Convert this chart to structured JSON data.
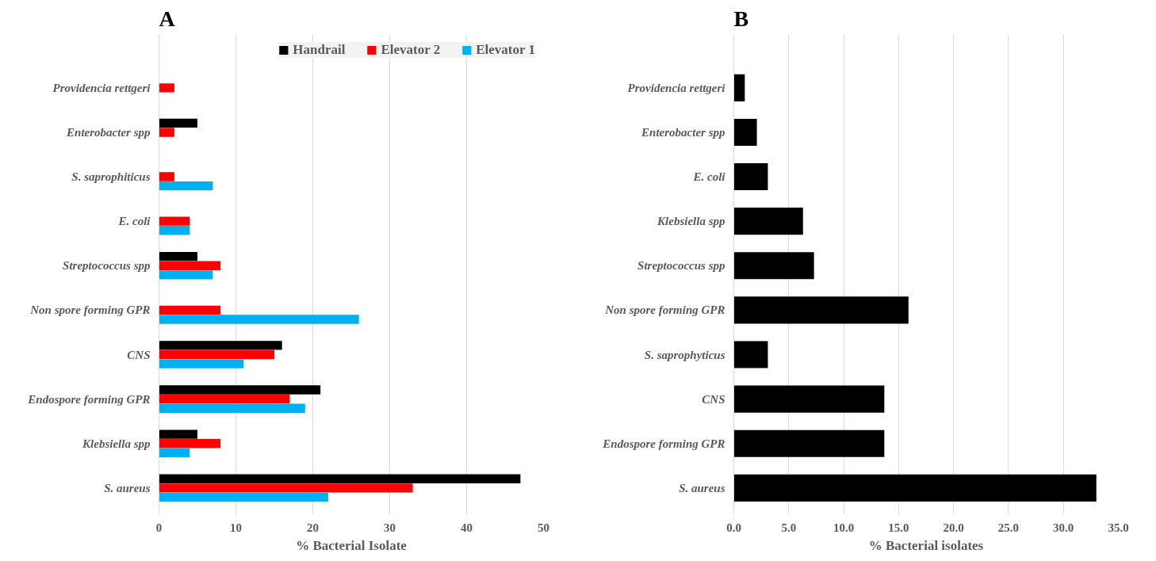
{
  "chart_data": [
    {
      "type": "bar",
      "orientation": "horizontal",
      "title": "A",
      "xlabel": "% Bacterial Isolate",
      "categories": [
        "Providencia rettgeri",
        "Enterobacter spp",
        "S. saprophiticus",
        "E. coli",
        "Streptococcus spp",
        "Non spore forming GPR",
        "CNS",
        "Endospore forming GPR",
        "Klebsiella spp",
        "S. aureus"
      ],
      "series": [
        {
          "name": "Handrail",
          "color": "#000000",
          "values": [
            null,
            5,
            null,
            null,
            5,
            null,
            16,
            21,
            5,
            47
          ]
        },
        {
          "name": "Elevator 2",
          "color": "#ff0000",
          "values": [
            2,
            2,
            2,
            4,
            8,
            8,
            15,
            17,
            8,
            33
          ]
        },
        {
          "name": "Elevator 1",
          "color": "#00b0f0",
          "values": [
            null,
            null,
            7,
            4,
            7,
            26,
            11,
            19,
            4,
            22
          ]
        }
      ],
      "xlim": [
        0,
        50
      ],
      "xticks": [
        0,
        10,
        20,
        30,
        40,
        50
      ],
      "grid": "x",
      "legend": "top right"
    },
    {
      "type": "bar",
      "orientation": "horizontal",
      "title": "B",
      "xlabel": "% Bacterial isolates",
      "categories": [
        "Providencia rettgeri",
        "Enterobacter spp",
        "E. coli",
        "Klebsiella spp",
        "Streptococcus spp",
        "Non spore forming GPR",
        "S. saprophyticus",
        "CNS",
        "Endospore forming GPR",
        "S. aureus"
      ],
      "series": [
        {
          "color": "#000000",
          "values": [
            1.0,
            2.1,
            3.1,
            6.3,
            7.3,
            15.9,
            3.1,
            13.7,
            13.7,
            33
          ]
        }
      ],
      "xlim": [
        0,
        35
      ],
      "xticks": [
        {
          "value": 0,
          "label": "0.0"
        },
        {
          "value": 5,
          "label": "5.0"
        },
        {
          "value": 10,
          "label": "10.0"
        },
        {
          "value": 15,
          "label": "15.0"
        },
        {
          "value": 20,
          "label": "20.0"
        },
        {
          "value": 25,
          "label": "25.0"
        },
        {
          "value": 30,
          "label": "30.0"
        },
        {
          "value": 35,
          "label": "35.0"
        }
      ],
      "grid": "x"
    }
  ]
}
